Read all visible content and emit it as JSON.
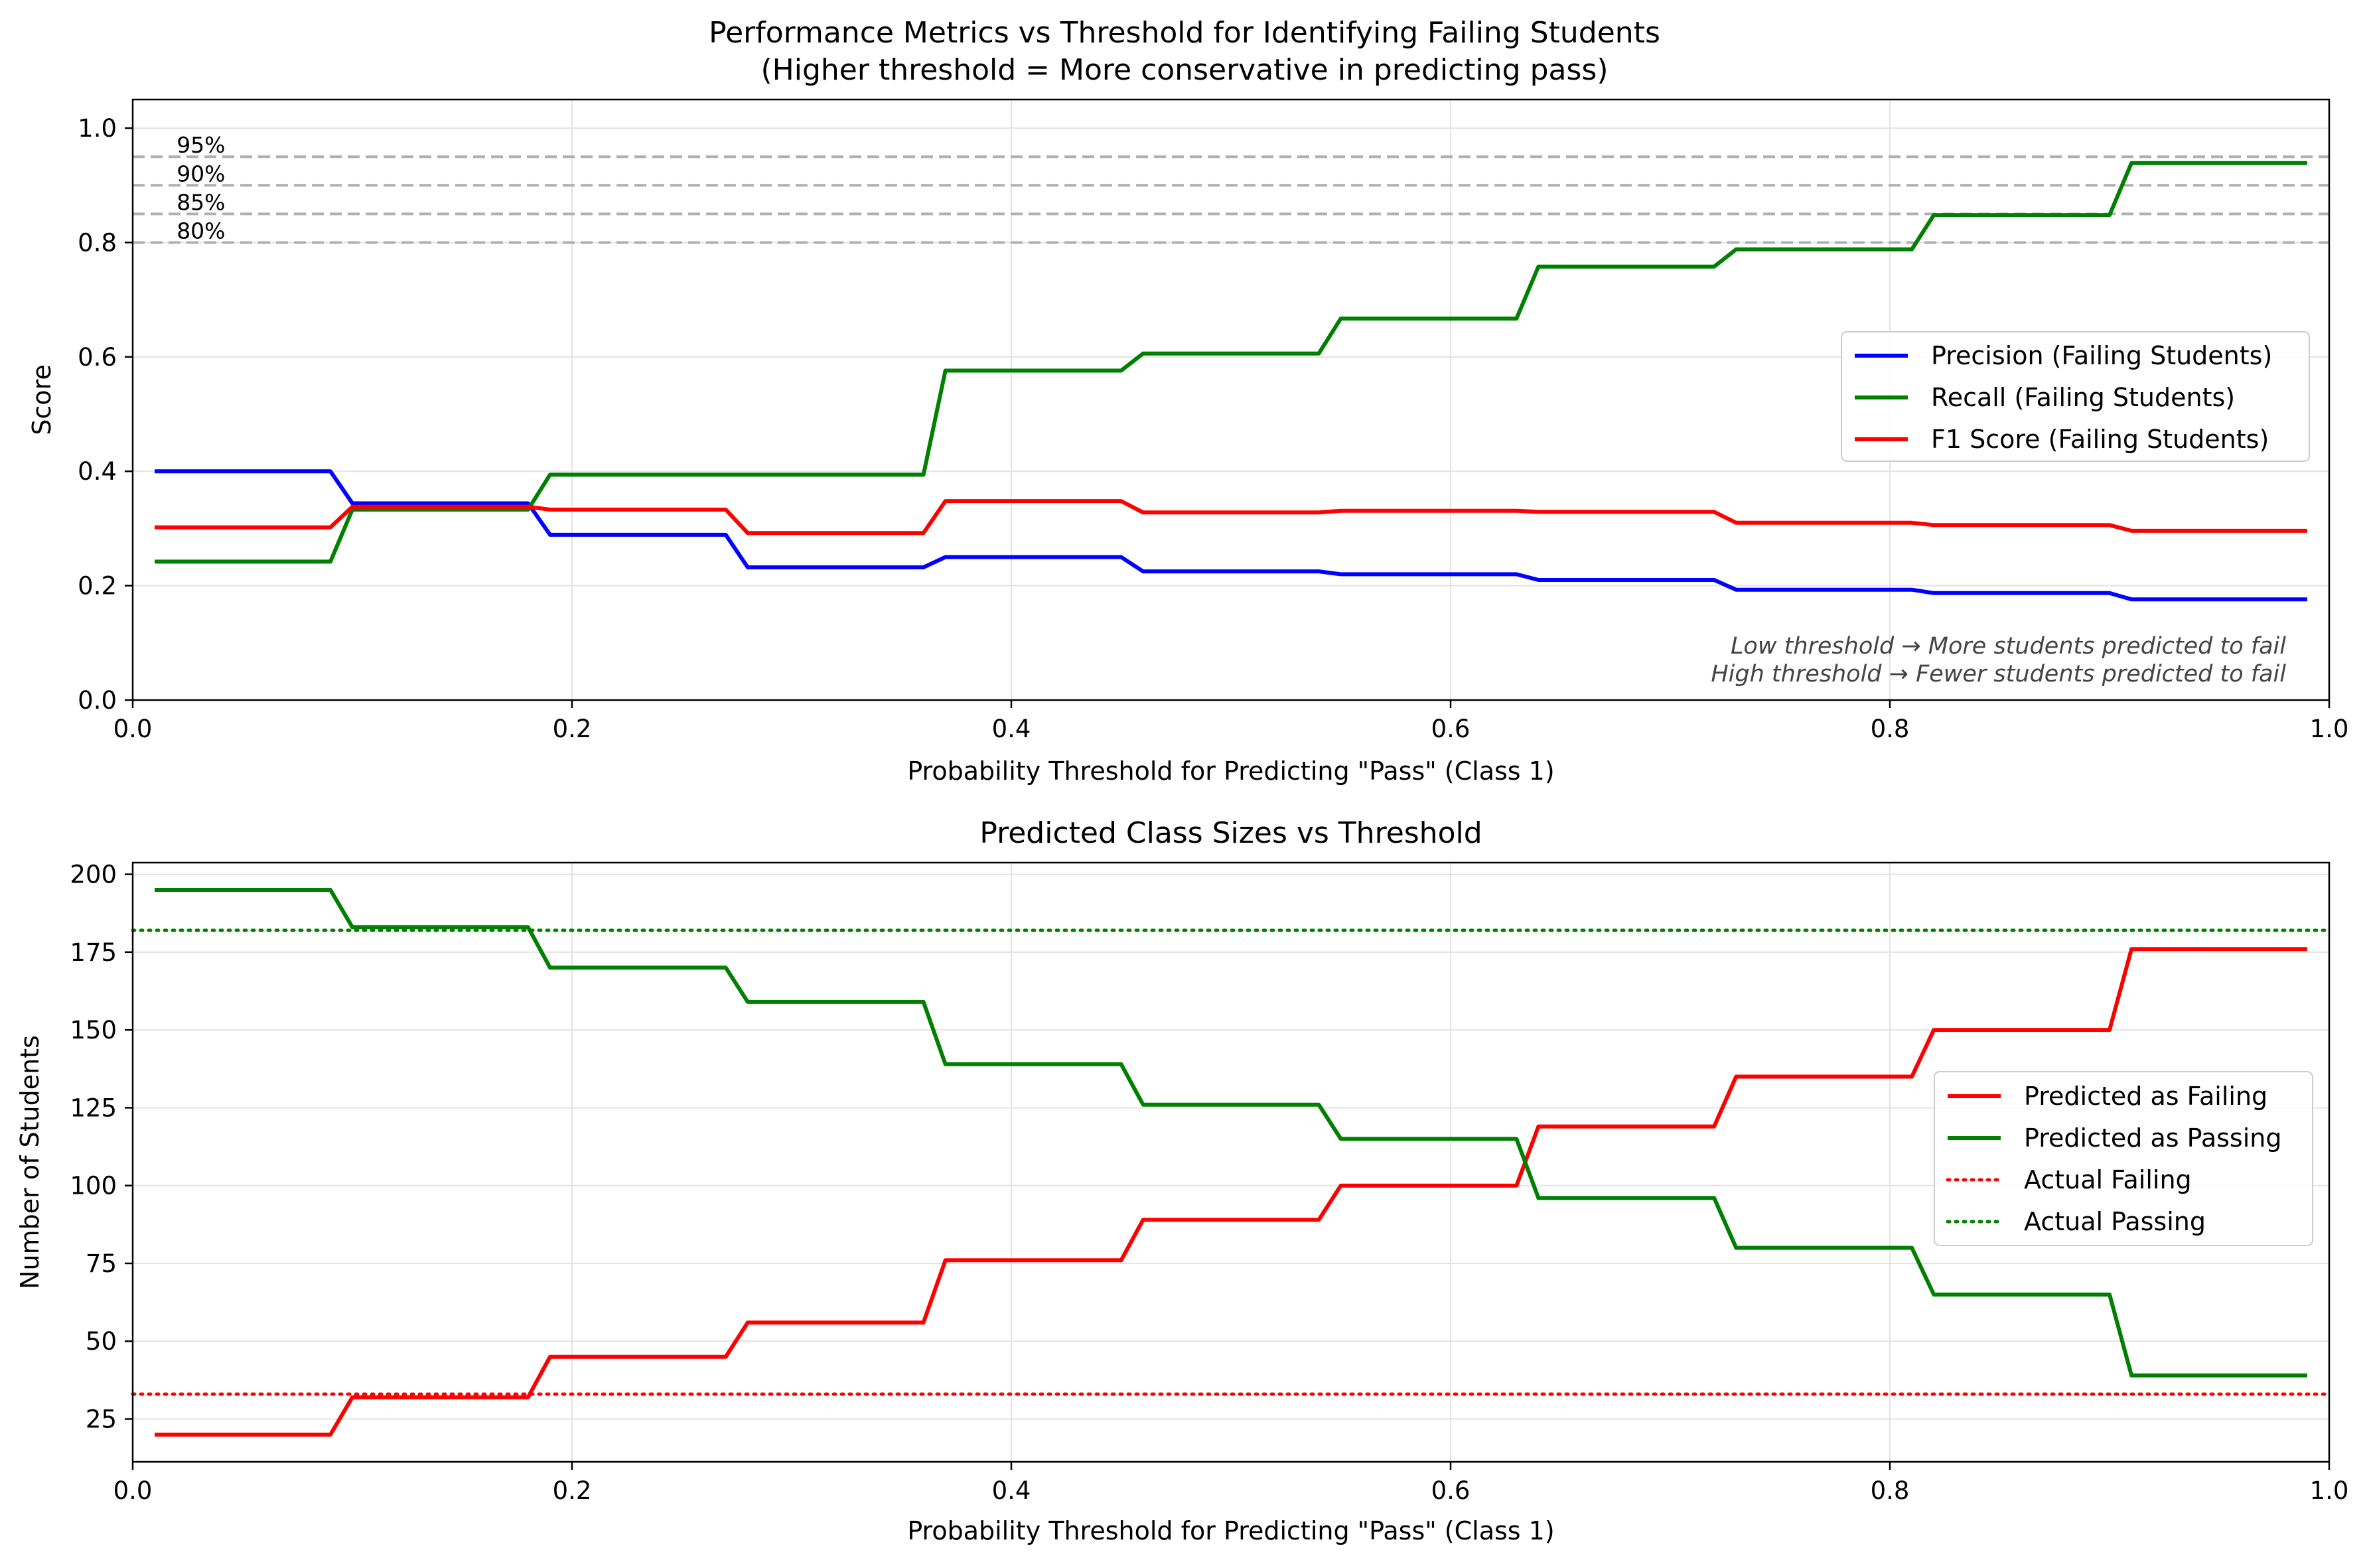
{
  "chart_data": [
    {
      "type": "line",
      "title": "Performance Metrics vs Threshold for Identifying Failing Students",
      "subtitle": "(Higher threshold = More conservative in predicting pass)",
      "xlabel": "Probability Threshold for Predicting \"Pass\" (Class 1)",
      "ylabel": "Score",
      "xlim": [
        0.0,
        1.0
      ],
      "ylim": [
        0.0,
        1.05
      ],
      "xticks": [
        0.0,
        0.2,
        0.4,
        0.6,
        0.8,
        1.0
      ],
      "xtick_labels": [
        "0.0",
        "0.2",
        "0.4",
        "0.6",
        "0.8",
        "1.0"
      ],
      "yticks": [
        0.0,
        0.2,
        0.4,
        0.6,
        0.8,
        1.0
      ],
      "ytick_labels": [
        "0.0",
        "0.2",
        "0.4",
        "0.6",
        "0.8",
        "1.0"
      ],
      "grid": true,
      "legend_position": "center-right",
      "reference_lines": [
        {
          "y": 0.95,
          "label": "95%",
          "color": "#b0b0b0",
          "style": "dashed"
        },
        {
          "y": 0.9,
          "label": "90%",
          "color": "#b0b0b0",
          "style": "dashed"
        },
        {
          "y": 0.85,
          "label": "85%",
          "color": "#b0b0b0",
          "style": "dashed"
        },
        {
          "y": 0.8,
          "label": "80%",
          "color": "#b0b0b0",
          "style": "dashed"
        }
      ],
      "annotations": [
        "Low threshold → More students predicted to fail",
        "High threshold → Fewer students predicted to fail"
      ],
      "series": [
        {
          "name": "Precision (Failing Students)",
          "color": "#0000ff",
          "style": "solid",
          "x": [
            0.01,
            0.09,
            0.1,
            0.18,
            0.19,
            0.27,
            0.28,
            0.36,
            0.37,
            0.45,
            0.46,
            0.54,
            0.55,
            0.63,
            0.64,
            0.72,
            0.73,
            0.81,
            0.82,
            0.9,
            0.91,
            0.99
          ],
          "y": [
            0.4,
            0.4,
            0.344,
            0.344,
            0.289,
            0.289,
            0.232,
            0.232,
            0.25,
            0.25,
            0.225,
            0.225,
            0.22,
            0.22,
            0.21,
            0.21,
            0.193,
            0.193,
            0.187,
            0.187,
            0.176,
            0.176
          ]
        },
        {
          "name": "Recall (Failing Students)",
          "color": "#008000",
          "style": "solid",
          "x": [
            0.01,
            0.09,
            0.1,
            0.18,
            0.19,
            0.27,
            0.28,
            0.36,
            0.37,
            0.45,
            0.46,
            0.54,
            0.55,
            0.63,
            0.64,
            0.72,
            0.73,
            0.81,
            0.82,
            0.9,
            0.91,
            0.99
          ],
          "y": [
            0.242,
            0.242,
            0.333,
            0.333,
            0.394,
            0.394,
            0.394,
            0.394,
            0.576,
            0.576,
            0.606,
            0.606,
            0.667,
            0.667,
            0.758,
            0.758,
            0.788,
            0.788,
            0.848,
            0.848,
            0.939,
            0.939
          ]
        },
        {
          "name": "F1 Score (Failing Students)",
          "color": "#ff0000",
          "style": "solid",
          "x": [
            0.01,
            0.09,
            0.1,
            0.18,
            0.19,
            0.27,
            0.28,
            0.36,
            0.37,
            0.45,
            0.46,
            0.54,
            0.55,
            0.63,
            0.64,
            0.72,
            0.73,
            0.81,
            0.82,
            0.9,
            0.91,
            0.99
          ],
          "y": [
            0.302,
            0.302,
            0.338,
            0.338,
            0.333,
            0.333,
            0.292,
            0.292,
            0.348,
            0.348,
            0.328,
            0.328,
            0.331,
            0.331,
            0.329,
            0.329,
            0.31,
            0.31,
            0.306,
            0.306,
            0.296,
            0.296
          ]
        }
      ]
    },
    {
      "type": "line",
      "title": "Predicted Class Sizes vs Threshold",
      "xlabel": "Probability Threshold for Predicting \"Pass\" (Class 1)",
      "ylabel": "Number of Students",
      "xlim": [
        0.0,
        1.0
      ],
      "ylim": [
        11.25,
        203.75
      ],
      "xticks": [
        0.0,
        0.2,
        0.4,
        0.6,
        0.8,
        1.0
      ],
      "xtick_labels": [
        "0.0",
        "0.2",
        "0.4",
        "0.6",
        "0.8",
        "1.0"
      ],
      "yticks": [
        25,
        50,
        75,
        100,
        125,
        150,
        175,
        200
      ],
      "ytick_labels": [
        "25",
        "50",
        "75",
        "100",
        "125",
        "150",
        "175",
        "200"
      ],
      "grid": true,
      "legend_position": "center-right",
      "series": [
        {
          "name": "Predicted as Failing",
          "color": "#ff0000",
          "style": "solid",
          "x": [
            0.01,
            0.09,
            0.1,
            0.18,
            0.19,
            0.27,
            0.28,
            0.36,
            0.37,
            0.45,
            0.46,
            0.54,
            0.55,
            0.63,
            0.64,
            0.72,
            0.73,
            0.81,
            0.82,
            0.9,
            0.91,
            0.99
          ],
          "y": [
            20,
            20,
            32,
            32,
            45,
            45,
            56,
            56,
            76,
            76,
            89,
            89,
            100,
            100,
            119,
            119,
            135,
            135,
            150,
            150,
            176,
            176
          ]
        },
        {
          "name": "Predicted as Passing",
          "color": "#008000",
          "style": "solid",
          "x": [
            0.01,
            0.09,
            0.1,
            0.18,
            0.19,
            0.27,
            0.28,
            0.36,
            0.37,
            0.45,
            0.46,
            0.54,
            0.55,
            0.63,
            0.64,
            0.72,
            0.73,
            0.81,
            0.82,
            0.9,
            0.91,
            0.99
          ],
          "y": [
            195,
            195,
            183,
            183,
            170,
            170,
            159,
            159,
            139,
            139,
            126,
            126,
            115,
            115,
            96,
            96,
            80,
            80,
            65,
            65,
            39,
            39
          ]
        },
        {
          "name": "Actual Failing",
          "color": "#ff0000",
          "style": "dotted",
          "x": [
            0.0,
            1.0
          ],
          "y": [
            33,
            33
          ]
        },
        {
          "name": "Actual Passing",
          "color": "#008000",
          "style": "dotted",
          "x": [
            0.0,
            1.0
          ],
          "y": [
            182,
            182
          ]
        }
      ]
    }
  ]
}
